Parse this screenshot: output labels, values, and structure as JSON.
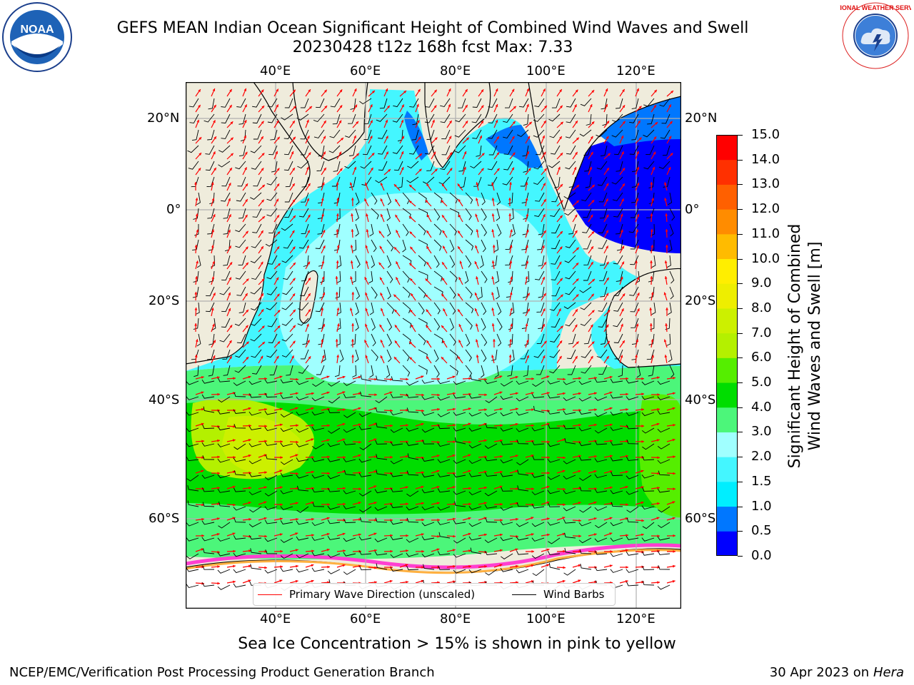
{
  "header": {
    "title_line1": "GEFS MEAN Indian Ocean Significant Height of Combined Wind Waves and Swell",
    "title_line2": "20230428 t12z 168h fcst   Max: 7.33"
  },
  "map": {
    "top_lon_labels": [
      "40°E",
      "60°E",
      "80°E",
      "100°E",
      "120°E"
    ],
    "bottom_lon_labels": [
      "40°E",
      "60°E",
      "80°E",
      "100°E",
      "120°E"
    ],
    "left_lat_labels": [
      "20°N",
      "0°",
      "20°S",
      "40°S",
      "60°S"
    ],
    "right_lat_labels": [
      "20°N",
      "0°",
      "20°S",
      "40°S",
      "60°S"
    ],
    "land_color": "#efecdc",
    "grid_color": "#b0b0b0"
  },
  "colorbar": {
    "label_line1": "Significant Height of Combined",
    "label_line2": "Wind Waves and Swell [m]",
    "ticks": [
      "0.0",
      "0.5",
      "1.0",
      "1.5",
      "2.0",
      "3.0",
      "4.0",
      "5.0",
      "6.0",
      "7.0",
      "8.0",
      "9.0",
      "10.0",
      "11.0",
      "12.0",
      "13.0",
      "14.0",
      "15.0"
    ],
    "colors": [
      "#0000ff",
      "#0077ff",
      "#00eeff",
      "#44f6ff",
      "#a0ffff",
      "#4cf67a",
      "#00dd00",
      "#55ee00",
      "#b4f000",
      "#ccf000",
      "#eeee00",
      "#ffee00",
      "#ffbb00",
      "#ff8c00",
      "#ff6000",
      "#ff3000",
      "#ff0000"
    ]
  },
  "legend": {
    "wave_label": "Primary Wave Direction (unscaled)",
    "wave_color": "#ff0000",
    "barb_label": "Wind Barbs",
    "barb_color": "#000000"
  },
  "caption": "Sea Ice Concentration > 15% is shown in pink to yellow",
  "footer": {
    "left": "NCEP/EMC/Verification Post Processing Product Generation Branch",
    "right_prefix": "30 Apr 2023 on ",
    "right_host": "Hera"
  },
  "logos": {
    "noaa_text": "NOAA",
    "nws_text": "NATIONAL WEATHER SERVICE"
  }
}
